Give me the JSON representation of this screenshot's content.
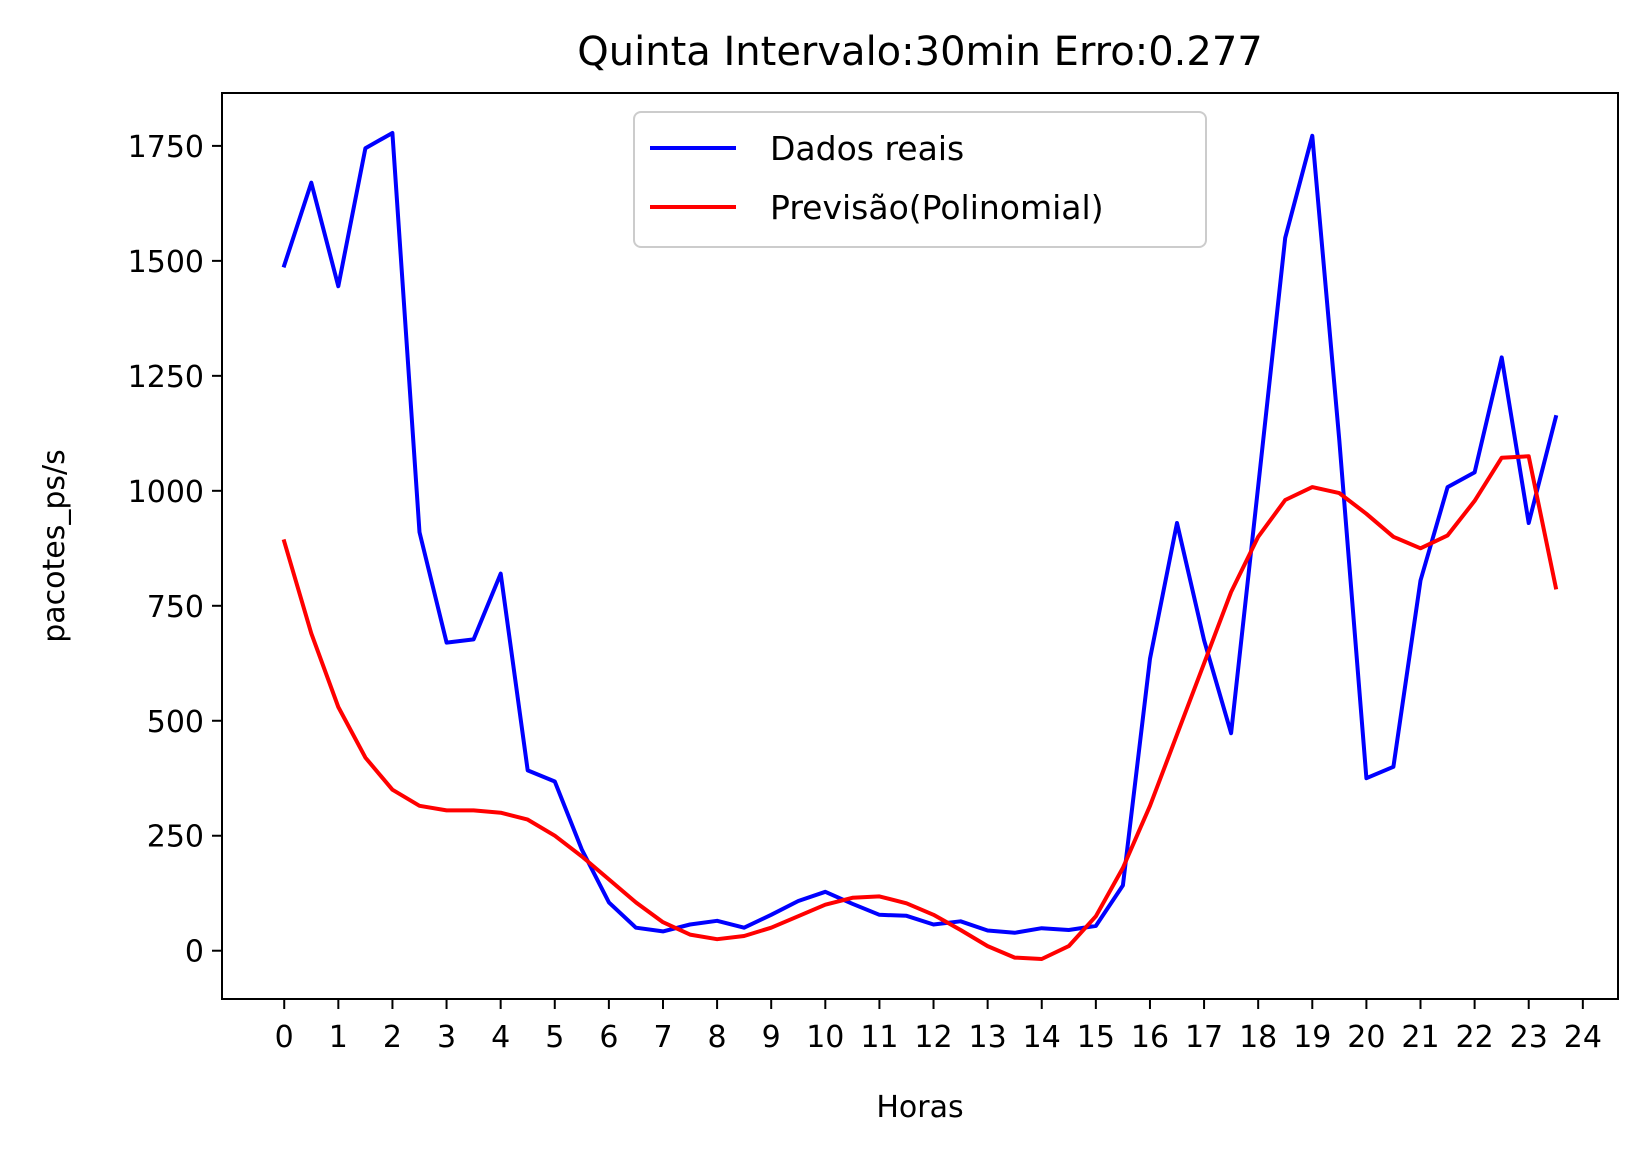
{
  "chart_data": {
    "type": "line",
    "title": "Quinta Intervalo:30min Erro:0.277",
    "xlabel": "Horas",
    "ylabel": "pacotes_ps/s",
    "xlim": [
      -1.15,
      24.65
    ],
    "ylim": [
      -105,
      1865
    ],
    "xticks": [
      0,
      1,
      2,
      3,
      4,
      5,
      6,
      7,
      8,
      9,
      10,
      11,
      12,
      13,
      14,
      15,
      16,
      17,
      18,
      19,
      20,
      21,
      22,
      23,
      24
    ],
    "xtick_labels": [
      "0",
      "1",
      "2",
      "3",
      "4",
      "5",
      "6",
      "7",
      "8",
      "9",
      "10",
      "11",
      "12",
      "13",
      "14",
      "15",
      "16",
      "17",
      "18",
      "19",
      "20",
      "21",
      "22",
      "23",
      "24"
    ],
    "yticks": [
      0,
      250,
      500,
      750,
      1000,
      1250,
      1500,
      1750
    ],
    "ytick_labels": [
      "0",
      "250",
      "500",
      "750",
      "1000",
      "1250",
      "1500",
      "1750"
    ],
    "grid": false,
    "legend_position": "top-center",
    "x": [
      0,
      0.5,
      1,
      1.5,
      2,
      2.5,
      3,
      3.5,
      4,
      4.5,
      5,
      5.5,
      6,
      6.5,
      7,
      7.5,
      8,
      8.5,
      9,
      9.5,
      10,
      10.5,
      11,
      11.5,
      12,
      12.5,
      13,
      13.5,
      14,
      14.5,
      15,
      15.5,
      16,
      16.5,
      17,
      17.5,
      18,
      18.5,
      19,
      19.5,
      20,
      20.5,
      21,
      21.5,
      22,
      22.5,
      23,
      23.5
    ],
    "series": [
      {
        "name": "Dados reais",
        "color": "#0000ff",
        "values": [
          1490,
          1670,
          1445,
          1745,
          1778,
          910,
          670,
          677,
          820,
          392,
          368,
          220,
          105,
          50,
          42,
          57,
          65,
          50,
          78,
          108,
          128,
          102,
          78,
          76,
          57,
          64,
          44,
          39,
          49,
          45,
          54,
          142,
          635,
          930,
          675,
          473,
          1010,
          1550,
          1772,
          1110,
          375,
          400,
          805,
          1008,
          1040,
          1290,
          930,
          1160
        ]
      },
      {
        "name": "Previsão(Polinomial)",
        "color": "#ff0000",
        "values": [
          890,
          690,
          530,
          420,
          350,
          315,
          305,
          305,
          300,
          285,
          250,
          205,
          155,
          105,
          62,
          35,
          25,
          32,
          50,
          75,
          100,
          115,
          118,
          103,
          78,
          45,
          10,
          -15,
          -18,
          10,
          75,
          180,
          315,
          470,
          625,
          780,
          900,
          980,
          1008,
          995,
          950,
          900,
          875,
          903,
          978,
          1072,
          1075,
          790
        ]
      }
    ]
  }
}
